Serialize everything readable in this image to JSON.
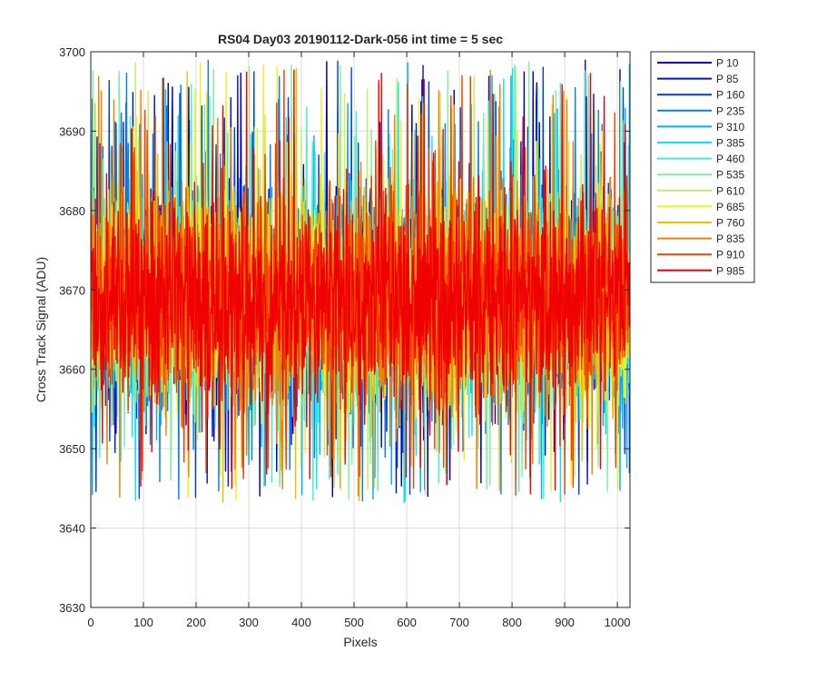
{
  "chart_data": {
    "type": "line",
    "title": "RS04 Day03 20190112-Dark-056 int time = 5 sec",
    "xlabel": "Pixels",
    "ylabel": "Cross Track Signal (ADU)",
    "xlim": [
      0,
      1024
    ],
    "ylim": [
      3630,
      3700
    ],
    "xticks": [
      0,
      100,
      200,
      300,
      400,
      500,
      600,
      700,
      800,
      900,
      1000
    ],
    "yticks": [
      3630,
      3640,
      3650,
      3660,
      3670,
      3680,
      3690,
      3700
    ],
    "xtick_labels": [
      "0",
      "100",
      "200",
      "300",
      "400",
      "500",
      "600",
      "700",
      "800",
      "900",
      "1000"
    ],
    "ytick_labels": [
      "3630",
      "3640",
      "3650",
      "3660",
      "3670",
      "3680",
      "3690",
      "3700"
    ],
    "grid": true,
    "legend_position": "outside-top-right",
    "noise": {
      "mean": 3669,
      "core_spread": 11,
      "num_pixels": 1024,
      "note": "dense noise traces; approximate values around mean with occasional spikes"
    },
    "series": [
      {
        "name": "P 10",
        "color": "#0000aa"
      },
      {
        "name": "P 85",
        "color": "#0010d0"
      },
      {
        "name": "P 160",
        "color": "#0040e0"
      },
      {
        "name": "P 235",
        "color": "#0080e8"
      },
      {
        "name": "P 310",
        "color": "#00b0f0"
      },
      {
        "name": "P 385",
        "color": "#10e0f0"
      },
      {
        "name": "P 460",
        "color": "#40f0d0"
      },
      {
        "name": "P 535",
        "color": "#80f0a0"
      },
      {
        "name": "P 610",
        "color": "#c0f060"
      },
      {
        "name": "P 685",
        "color": "#f0f020"
      },
      {
        "name": "P 760",
        "color": "#f0c000"
      },
      {
        "name": "P 835",
        "color": "#f08000"
      },
      {
        "name": "P 910",
        "color": "#f04000"
      },
      {
        "name": "P 985",
        "color": "#f00000"
      }
    ]
  }
}
